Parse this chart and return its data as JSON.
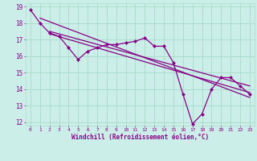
{
  "xlabel": "Windchill (Refroidissement éolien,°C)",
  "background_color": "#cceee8",
  "grid_color": "#aaddcc",
  "line_color": "#880088",
  "xlim": [
    -0.5,
    23.5
  ],
  "ylim": [
    11.8,
    19.2
  ],
  "yticks": [
    12,
    13,
    14,
    15,
    16,
    17,
    18,
    19
  ],
  "xticks": [
    0,
    1,
    2,
    3,
    4,
    5,
    6,
    7,
    8,
    9,
    10,
    11,
    12,
    13,
    14,
    15,
    16,
    17,
    18,
    19,
    20,
    21,
    22,
    23
  ],
  "main_series_x": [
    0,
    1,
    2,
    3,
    4,
    5,
    6,
    7,
    8,
    9,
    10,
    11,
    12,
    13,
    14,
    15,
    16,
    17,
    18,
    19,
    20,
    21,
    22,
    23
  ],
  "main_series_y": [
    18.8,
    18.0,
    17.4,
    17.2,
    16.5,
    15.8,
    16.3,
    16.5,
    16.7,
    16.7,
    16.8,
    16.9,
    17.1,
    16.6,
    16.6,
    15.6,
    13.7,
    11.9,
    12.5,
    14.0,
    14.7,
    14.7,
    14.2,
    13.7
  ],
  "trend1_x": [
    1,
    23
  ],
  "trend1_y": [
    18.3,
    13.5
  ],
  "trend2_x": [
    2,
    23
  ],
  "trend2_y": [
    17.5,
    14.2
  ],
  "trend3_x": [
    2,
    23
  ],
  "trend3_y": [
    17.35,
    13.8
  ]
}
